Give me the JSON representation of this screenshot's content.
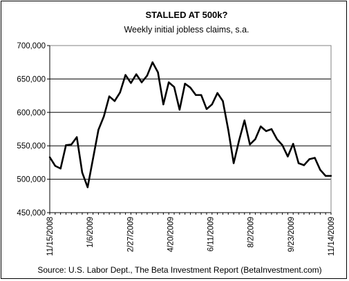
{
  "chart_data": {
    "type": "line",
    "title": "STALLED AT 500k?",
    "subtitle": "Weekly initial jobless claims, s.a.",
    "source": "Source: U.S. Labor Dept., The Beta Investment Report (BetaInvestment.com)",
    "xlabel": "",
    "ylabel": "",
    "ylim": [
      450000,
      700000
    ],
    "y_ticks": [
      450000,
      500000,
      550000,
      600000,
      650000,
      700000
    ],
    "y_tick_labels": [
      "450,000",
      "500,000",
      "550,000",
      "600,000",
      "650,000",
      "700,000"
    ],
    "x_tick_labels": [
      "11/15/2008",
      "1/6/2009",
      "2/27/2009",
      "4/20/2009",
      "6/11/2009",
      "8/2/2009",
      "9/23/2009",
      "11/14/2009"
    ],
    "grid": "horizontal",
    "line_color": "#000000",
    "series": [
      {
        "name": "",
        "values": [
          533000,
          520000,
          516000,
          551000,
          552000,
          563000,
          510000,
          488000,
          531000,
          574000,
          594000,
          624000,
          617000,
          630000,
          656000,
          644000,
          657000,
          645000,
          655000,
          675000,
          660000,
          612000,
          645000,
          638000,
          604000,
          643000,
          637000,
          626000,
          626000,
          605000,
          612000,
          629000,
          617000,
          574000,
          524000,
          558000,
          588000,
          552000,
          560000,
          579000,
          572000,
          575000,
          560000,
          551000,
          534000,
          553000,
          524000,
          521000,
          530000,
          532000,
          514000,
          505000,
          505000
        ]
      }
    ]
  }
}
